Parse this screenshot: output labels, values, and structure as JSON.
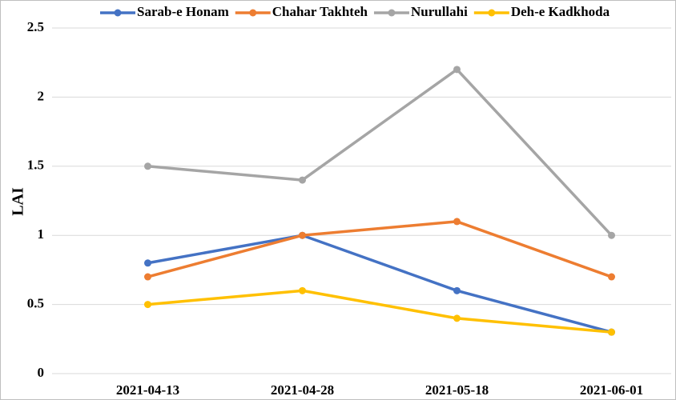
{
  "chart_data": {
    "type": "line",
    "y_label": "LAI",
    "categories": [
      "2021-04-13",
      "2021-04-28",
      "2021-05-18",
      "2021-06-01"
    ],
    "series": [
      {
        "name": "Sarab-e Honam",
        "color": "#4472c4",
        "values": [
          0.8,
          1.0,
          0.6,
          0.3
        ]
      },
      {
        "name": "Chahar Takhteh",
        "color": "#ed7d31",
        "values": [
          0.7,
          1.0,
          1.1,
          0.7
        ]
      },
      {
        "name": "Nurullahi",
        "color": "#a5a5a5",
        "values": [
          1.5,
          1.4,
          2.2,
          1.0
        ]
      },
      {
        "name": "Deh-e Kadkhoda",
        "color": "#ffc000",
        "values": [
          0.5,
          0.6,
          0.4,
          0.3
        ]
      }
    ],
    "ylim": [
      0,
      2.5
    ],
    "yticks": [
      0,
      0.5,
      1,
      1.5,
      2,
      2.5
    ],
    "grid": true,
    "legend": "top"
  }
}
